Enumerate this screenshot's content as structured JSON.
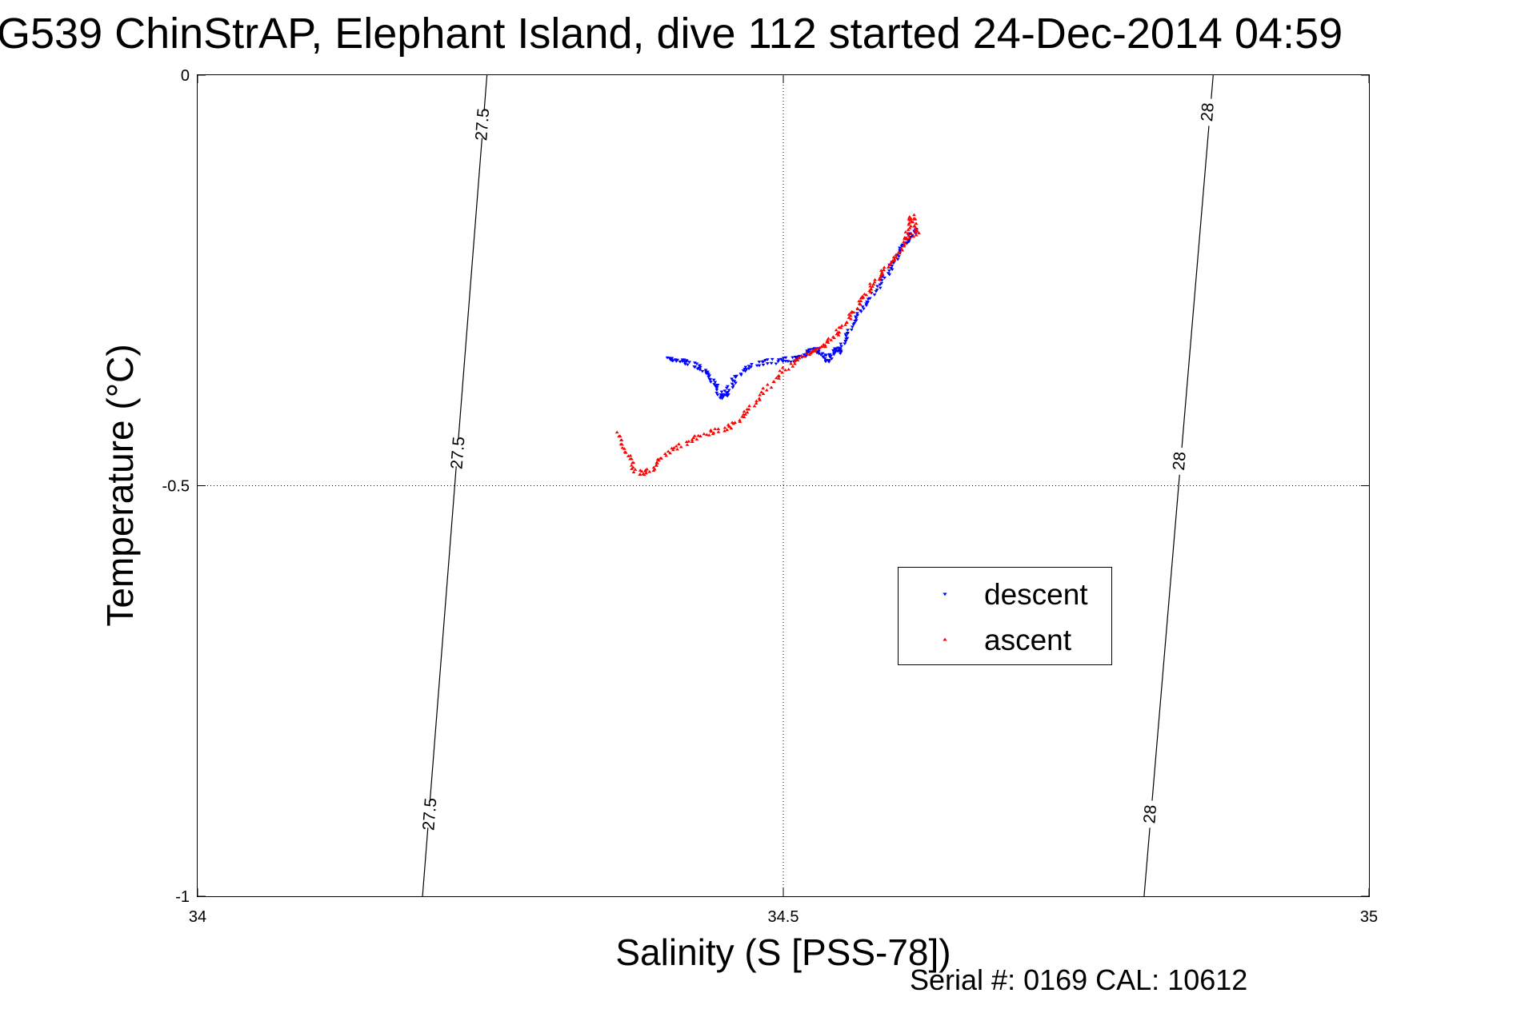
{
  "chart_data": {
    "type": "scatter",
    "title": "G539 ChinStrAP, Elephant Island, dive 112 started 24-Dec-2014 04:59",
    "xlabel": "Salinity (S [PSS-78])",
    "ylabel": "Temperature (°C)",
    "xlim": [
      34,
      35
    ],
    "ylim": [
      -1,
      0
    ],
    "x_ticks": [
      34,
      34.5,
      35
    ],
    "x_tick_labels": [
      "34",
      "34.5",
      "35"
    ],
    "y_ticks": [
      0,
      -0.5,
      -1
    ],
    "y_tick_labels": [
      "0",
      "-0.5",
      "-1"
    ],
    "grid": true,
    "legend_position": "center-right",
    "footer": "Serial #: 0169 CAL: 10612",
    "density_contours": [
      {
        "label": "27.5",
        "points": [
          [
            34.247,
            0
          ],
          [
            34.192,
            -1
          ]
        ],
        "label_positions": [
          [
            34.243,
            -0.06
          ],
          [
            34.222,
            -0.46
          ],
          [
            34.198,
            -0.9
          ]
        ]
      },
      {
        "label": "28",
        "points": [
          [
            34.867,
            0
          ],
          [
            34.808,
            -1
          ]
        ],
        "label_positions": [
          [
            34.862,
            -0.045
          ],
          [
            34.838,
            -0.47
          ],
          [
            34.813,
            -0.9
          ]
        ]
      }
    ],
    "series": [
      {
        "name": "descent",
        "color": "#0000ff",
        "marker": "triangle-down",
        "points": [
          [
            34.401,
            -0.344
          ],
          [
            34.405,
            -0.346
          ],
          [
            34.41,
            -0.347
          ],
          [
            34.415,
            -0.349
          ],
          [
            34.42,
            -0.351
          ],
          [
            34.425,
            -0.354
          ],
          [
            34.43,
            -0.357
          ],
          [
            34.434,
            -0.362
          ],
          [
            34.438,
            -0.368
          ],
          [
            34.441,
            -0.375
          ],
          [
            34.444,
            -0.382
          ],
          [
            34.446,
            -0.388
          ],
          [
            34.448,
            -0.392
          ],
          [
            34.45,
            -0.39
          ],
          [
            34.452,
            -0.386
          ],
          [
            34.455,
            -0.378
          ],
          [
            34.458,
            -0.371
          ],
          [
            34.462,
            -0.364
          ],
          [
            34.468,
            -0.358
          ],
          [
            34.475,
            -0.352
          ],
          [
            34.482,
            -0.35
          ],
          [
            34.49,
            -0.349
          ],
          [
            34.497,
            -0.348
          ],
          [
            34.503,
            -0.347
          ],
          [
            34.508,
            -0.346
          ],
          [
            34.513,
            -0.344
          ],
          [
            34.518,
            -0.341
          ],
          [
            34.522,
            -0.336
          ],
          [
            34.526,
            -0.333
          ],
          [
            34.53,
            -0.335
          ],
          [
            34.533,
            -0.341
          ],
          [
            34.536,
            -0.346
          ],
          [
            34.538,
            -0.349
          ],
          [
            34.54,
            -0.343
          ],
          [
            34.542,
            -0.338
          ],
          [
            34.544,
            -0.334
          ],
          [
            34.546,
            -0.333
          ],
          [
            34.548,
            -0.337
          ],
          [
            34.55,
            -0.33
          ],
          [
            34.553,
            -0.322
          ],
          [
            34.556,
            -0.313
          ],
          [
            34.56,
            -0.302
          ],
          [
            34.564,
            -0.292
          ],
          [
            34.568,
            -0.283
          ],
          [
            34.573,
            -0.273
          ],
          [
            34.578,
            -0.263
          ],
          [
            34.583,
            -0.253
          ],
          [
            34.588,
            -0.243
          ],
          [
            34.592,
            -0.233
          ],
          [
            34.596,
            -0.222
          ],
          [
            34.6,
            -0.212
          ],
          [
            34.604,
            -0.204
          ],
          [
            34.608,
            -0.199
          ],
          [
            34.611,
            -0.192
          ],
          [
            34.612,
            -0.187
          ]
        ]
      },
      {
        "name": "ascent",
        "color": "#ff0000",
        "marker": "triangle-up",
        "points": [
          [
            34.358,
            -0.435
          ],
          [
            34.362,
            -0.448
          ],
          [
            34.366,
            -0.46
          ],
          [
            34.37,
            -0.472
          ],
          [
            34.374,
            -0.482
          ],
          [
            34.378,
            -0.485
          ],
          [
            34.384,
            -0.483
          ],
          [
            34.39,
            -0.479
          ],
          [
            34.394,
            -0.47
          ],
          [
            34.4,
            -0.462
          ],
          [
            34.408,
            -0.456
          ],
          [
            34.416,
            -0.449
          ],
          [
            34.424,
            -0.443
          ],
          [
            34.432,
            -0.438
          ],
          [
            34.44,
            -0.434
          ],
          [
            34.448,
            -0.431
          ],
          [
            34.455,
            -0.427
          ],
          [
            34.461,
            -0.421
          ],
          [
            34.467,
            -0.413
          ],
          [
            34.473,
            -0.403
          ],
          [
            34.479,
            -0.393
          ],
          [
            34.486,
            -0.382
          ],
          [
            34.493,
            -0.371
          ],
          [
            34.5,
            -0.361
          ],
          [
            34.507,
            -0.352
          ],
          [
            34.514,
            -0.345
          ],
          [
            34.521,
            -0.339
          ],
          [
            34.527,
            -0.336
          ],
          [
            34.532,
            -0.331
          ],
          [
            34.537,
            -0.326
          ],
          [
            34.542,
            -0.321
          ],
          [
            34.547,
            -0.313
          ],
          [
            34.552,
            -0.304
          ],
          [
            34.557,
            -0.294
          ],
          [
            34.562,
            -0.284
          ],
          [
            34.566,
            -0.274
          ],
          [
            34.57,
            -0.267
          ],
          [
            34.574,
            -0.259
          ],
          [
            34.579,
            -0.252
          ],
          [
            34.583,
            -0.244
          ],
          [
            34.587,
            -0.236
          ],
          [
            34.592,
            -0.228
          ],
          [
            34.597,
            -0.221
          ],
          [
            34.601,
            -0.212
          ],
          [
            34.604,
            -0.2
          ],
          [
            34.606,
            -0.188
          ],
          [
            34.608,
            -0.178
          ],
          [
            34.61,
            -0.172
          ],
          [
            34.612,
            -0.181
          ],
          [
            34.614,
            -0.19
          ],
          [
            34.61,
            -0.195
          ],
          [
            34.604,
            -0.199
          ]
        ]
      }
    ]
  }
}
